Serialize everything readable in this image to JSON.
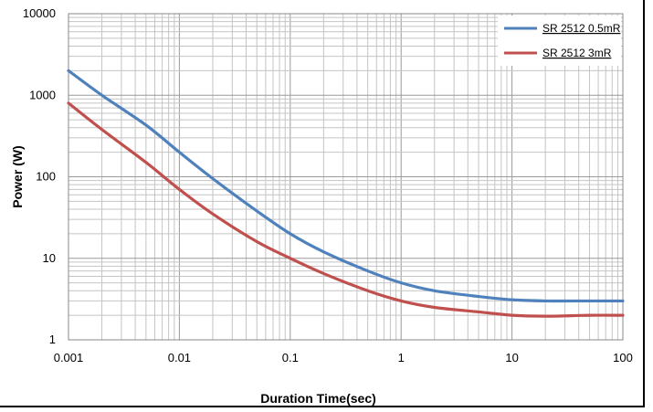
{
  "chart_data": {
    "type": "line",
    "title": "",
    "xlabel": "Duration Time(sec)",
    "ylabel": "Power (W)",
    "xscale": "log",
    "yscale": "log",
    "xlim": [
      0.001,
      100
    ],
    "ylim": [
      1,
      10000
    ],
    "x_tick_labels": [
      "0.001",
      "0.01",
      "0.1",
      "1",
      "10",
      "100"
    ],
    "y_tick_labels": [
      "1",
      "10",
      "100",
      "1000",
      "10000"
    ],
    "grid": true,
    "legend_position": "top-right",
    "series": [
      {
        "name": "SR 2512 0.5mR",
        "color": "#4f81bd",
        "x": [
          0.001,
          0.002,
          0.005,
          0.01,
          0.02,
          0.05,
          0.1,
          0.2,
          0.5,
          1,
          2,
          5,
          10,
          20,
          50,
          100
        ],
        "y": [
          2000,
          1000,
          430,
          200,
          95,
          38,
          20,
          12,
          7,
          5,
          4,
          3.4,
          3.1,
          3.0,
          3.0,
          3.0
        ]
      },
      {
        "name": "SR 2512  3mR",
        "color": "#c0504d",
        "x": [
          0.001,
          0.002,
          0.005,
          0.01,
          0.02,
          0.05,
          0.1,
          0.2,
          0.5,
          1,
          2,
          5,
          10,
          20,
          50,
          100
        ],
        "y": [
          800,
          380,
          150,
          70,
          35,
          16,
          10,
          6.5,
          4,
          3,
          2.5,
          2.2,
          2.0,
          1.95,
          2.0,
          2.0
        ]
      }
    ]
  }
}
